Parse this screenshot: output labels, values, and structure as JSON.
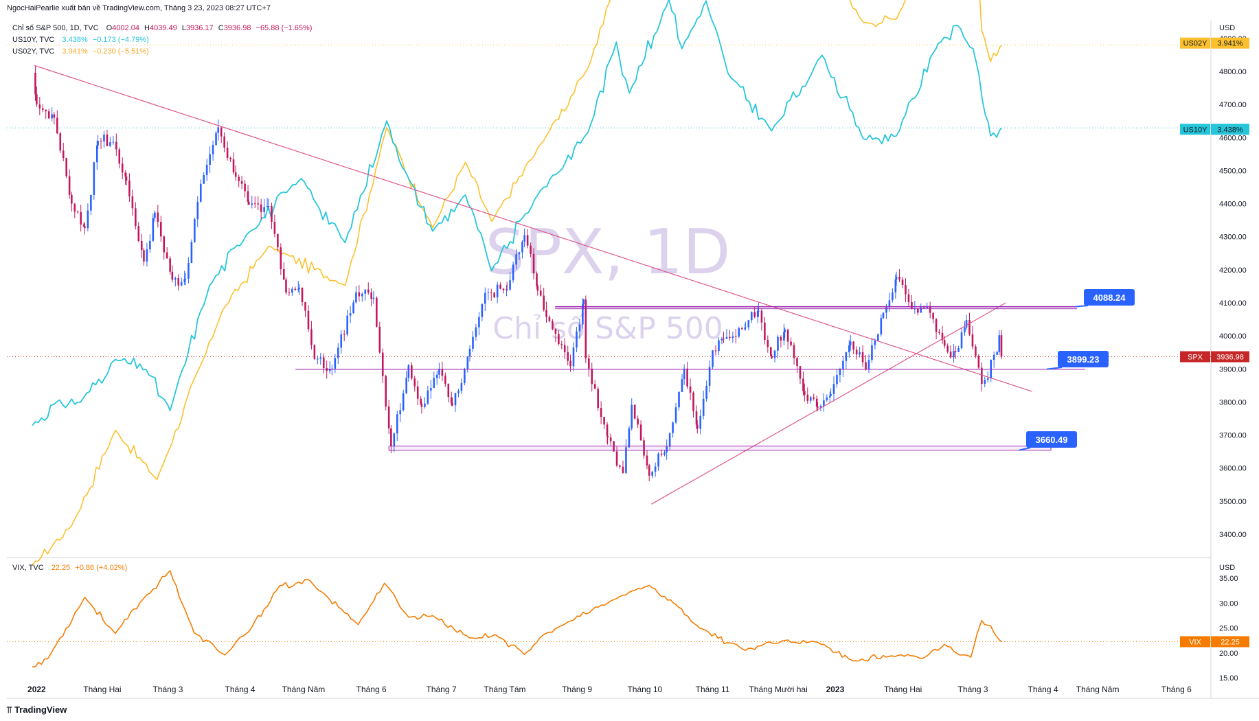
{
  "header": {
    "publisher": "NgocHaiPearlie xuất bản về TradingView.com, Tháng 3 23, 2023 08:27 UTC+7"
  },
  "legend": {
    "spx": {
      "symbol": "Chỉ số S&P 500, 1D, TVC",
      "o_label": "O",
      "o": "4002.04",
      "h_label": "H",
      "h": "4039.49",
      "l_label": "L",
      "l": "3936.17",
      "c_label": "C",
      "c": "3936.98",
      "chg": "−65.88 (−1.65%)"
    },
    "us10y": {
      "symbol": "US10Y, TVC",
      "value": "3.438%",
      "chg": "−0.173 (−4.79%)"
    },
    "us02y": {
      "symbol": "US02Y, TVC",
      "value": "3.941%",
      "chg": "−0.230 (−5.51%)"
    },
    "vix": {
      "symbol": "VIX, TVC",
      "value": "22.25",
      "chg": "+0.86 (+4.02%)"
    }
  },
  "watermark": {
    "ticker": "SPX, 1D",
    "name": "Chỉ số S&P 500"
  },
  "footer": {
    "logo": "TradingView"
  },
  "colors": {
    "bull": "#2962ff",
    "bear": "#c2185b",
    "us10y": "#26c6da",
    "us02y": "#fbc02d",
    "vix": "#f57c00",
    "trend": "#e0568a",
    "hline": "#9c27b0",
    "callout": "#2962ff",
    "spx_tag": "#c62828"
  },
  "chart_data": [
    {
      "type": "candlestick",
      "title": "Chỉ số S&P 500, 1D, TVC",
      "ylabel": "USD",
      "ylim": [
        3350,
        4950
      ],
      "y_ticks": [
        "3400.00",
        "3500.00",
        "3600.00",
        "3700.00",
        "3800.00",
        "3900.00",
        "4000.00",
        "4100.00",
        "4200.00",
        "4300.00",
        "4400.00",
        "4500.00",
        "4600.00",
        "4700.00",
        "4800.00",
        "4900.00"
      ],
      "x_ticks": [
        "2022",
        "Tháng Hai",
        "Tháng 3",
        "Tháng 4",
        "Tháng Năm",
        "Tháng 6",
        "Tháng 7",
        "Tháng Tám",
        "Tháng 9",
        "Tháng 10",
        "Tháng 11",
        "Tháng Mười hai",
        "2023",
        "Tháng Hai",
        "Tháng 3",
        "Tháng 4",
        "Tháng Năm",
        "Tháng 6"
      ],
      "spx_close_path": [
        [
          "2022-01-03",
          4796
        ],
        [
          "2022-01-05",
          4700
        ],
        [
          "2022-01-13",
          4660
        ],
        [
          "2022-01-21",
          4400
        ],
        [
          "2022-01-27",
          4326
        ],
        [
          "2022-02-02",
          4590
        ],
        [
          "2022-02-09",
          4587
        ],
        [
          "2022-02-15",
          4470
        ],
        [
          "2022-02-23",
          4225
        ],
        [
          "2022-02-28",
          4373
        ],
        [
          "2022-03-08",
          4170
        ],
        [
          "2022-03-14",
          4173
        ],
        [
          "2022-03-21",
          4460
        ],
        [
          "2022-03-29",
          4631
        ],
        [
          "2022-04-06",
          4481
        ],
        [
          "2022-04-12",
          4397
        ],
        [
          "2022-04-21",
          4393
        ],
        [
          "2022-04-29",
          4131
        ],
        [
          "2022-05-05",
          4146
        ],
        [
          "2022-05-12",
          3930
        ],
        [
          "2022-05-20",
          3901
        ],
        [
          "2022-05-31",
          4132
        ],
        [
          "2022-06-08",
          4115
        ],
        [
          "2022-06-16",
          3666
        ],
        [
          "2022-06-24",
          3911
        ],
        [
          "2022-06-30",
          3785
        ],
        [
          "2022-07-08",
          3899
        ],
        [
          "2022-07-14",
          3790
        ],
        [
          "2022-07-22",
          3961
        ],
        [
          "2022-07-29",
          4130
        ],
        [
          "2022-08-08",
          4140
        ],
        [
          "2022-08-16",
          4305
        ],
        [
          "2022-08-22",
          4137
        ],
        [
          "2022-08-26",
          4057
        ],
        [
          "2022-09-06",
          3908
        ],
        [
          "2022-09-12",
          4110
        ],
        [
          "2022-09-13",
          3932
        ],
        [
          "2022-09-23",
          3693
        ],
        [
          "2022-09-30",
          3585
        ],
        [
          "2022-10-04",
          3791
        ],
        [
          "2022-10-12",
          3577
        ],
        [
          "2022-10-20",
          3665
        ],
        [
          "2022-10-28",
          3901
        ],
        [
          "2022-11-03",
          3719
        ],
        [
          "2022-11-10",
          3956
        ],
        [
          "2022-11-15",
          3991
        ],
        [
          "2022-11-25",
          4026
        ],
        [
          "2022-12-01",
          4076
        ],
        [
          "2022-12-07",
          3933
        ],
        [
          "2022-12-13",
          4019
        ],
        [
          "2022-12-22",
          3822
        ],
        [
          "2022-12-28",
          3783
        ],
        [
          "2023-01-03",
          3824
        ],
        [
          "2023-01-12",
          3983
        ],
        [
          "2023-01-19",
          3898
        ],
        [
          "2023-01-27",
          4070
        ],
        [
          "2023-02-02",
          4179
        ],
        [
          "2023-02-09",
          4082
        ],
        [
          "2023-02-16",
          4090
        ],
        [
          "2023-02-24",
          3970
        ],
        [
          "2023-03-01",
          3951
        ],
        [
          "2023-03-06",
          4048
        ],
        [
          "2023-03-13",
          3855
        ],
        [
          "2023-03-20",
          3951
        ],
        [
          "2023-03-21",
          4002
        ],
        [
          "2023-03-22",
          3937
        ]
      ],
      "horizontal_levels": [
        {
          "label": "4088.24",
          "value": 4088.24
        },
        {
          "label": "3899.23",
          "value": 3899.23
        },
        {
          "label": "3660.49",
          "value": 3660.49
        }
      ],
      "trendlines": [
        {
          "from": [
            "2022-01-04",
            4818
          ],
          "to": [
            "2023-04-05",
            3832
          ]
        },
        {
          "from": [
            "2022-10-13",
            3491
          ],
          "to": [
            "2023-03-24",
            4100
          ]
        }
      ],
      "last_value": {
        "label": "SPX",
        "value": "3936.98"
      }
    },
    {
      "type": "line",
      "title": "US10Y, TVC / US02Y, TVC",
      "series": [
        {
          "name": "US10Y",
          "last": "3.438%",
          "points": [
            [
              "2022-01-03",
              1.63
            ],
            [
              "2022-01-14",
              1.77
            ],
            [
              "2022-01-25",
              1.77
            ],
            [
              "2022-02-10",
              2.03
            ],
            [
              "2022-02-24",
              1.97
            ],
            [
              "2022-03-07",
              1.72
            ],
            [
              "2022-03-25",
              2.48
            ],
            [
              "2022-04-11",
              2.79
            ],
            [
              "2022-05-06",
              3.13
            ],
            [
              "2022-05-26",
              2.74
            ],
            [
              "2022-06-14",
              3.48
            ],
            [
              "2022-06-24",
              3.13
            ],
            [
              "2022-07-05",
              2.81
            ],
            [
              "2022-07-20",
              3.03
            ],
            [
              "2022-08-01",
              2.57
            ],
            [
              "2022-08-22",
              3.03
            ],
            [
              "2022-09-14",
              3.41
            ],
            [
              "2022-09-27",
              3.96
            ],
            [
              "2022-10-03",
              3.65
            ],
            [
              "2022-10-21",
              4.22
            ],
            [
              "2022-10-27",
              3.92
            ],
            [
              "2022-11-07",
              4.21
            ],
            [
              "2022-11-17",
              3.77
            ],
            [
              "2022-12-07",
              3.42
            ],
            [
              "2022-12-30",
              3.88
            ],
            [
              "2023-01-18",
              3.37
            ],
            [
              "2023-02-02",
              3.39
            ],
            [
              "2023-02-21",
              3.95
            ],
            [
              "2023-03-02",
              4.06
            ],
            [
              "2023-03-09",
              3.92
            ],
            [
              "2023-03-17",
              3.39
            ],
            [
              "2023-03-22",
              3.438
            ]
          ]
        },
        {
          "name": "US02Y",
          "last": "3.941%",
          "points": [
            [
              "2022-01-03",
              0.78
            ],
            [
              "2022-01-21",
              1.02
            ],
            [
              "2022-02-10",
              1.6
            ],
            [
              "2022-03-01",
              1.3
            ],
            [
              "2022-03-31",
              2.33
            ],
            [
              "2022-04-21",
              2.72
            ],
            [
              "2022-05-26",
              2.48
            ],
            [
              "2022-06-14",
              3.44
            ],
            [
              "2022-07-05",
              2.83
            ],
            [
              "2022-07-20",
              3.23
            ],
            [
              "2022-08-01",
              2.87
            ],
            [
              "2022-08-26",
              3.39
            ],
            [
              "2022-09-14",
              3.8
            ],
            [
              "2022-09-26",
              4.29
            ],
            [
              "2022-10-21",
              4.48
            ],
            [
              "2022-11-04",
              4.66
            ],
            [
              "2022-11-17",
              4.45
            ],
            [
              "2022-12-07",
              4.27
            ],
            [
              "2022-12-30",
              4.43
            ],
            [
              "2023-01-18",
              4.08
            ],
            [
              "2023-02-02",
              4.1
            ],
            [
              "2023-02-21",
              4.66
            ],
            [
              "2023-03-08",
              5.07
            ],
            [
              "2023-03-13",
              4.03
            ],
            [
              "2023-03-17",
              3.84
            ],
            [
              "2023-03-22",
              3.941
            ]
          ]
        }
      ]
    },
    {
      "type": "line",
      "title": "VIX, TVC",
      "ylim": [
        15,
        37
      ],
      "y_ticks": [
        "15.00",
        "20.00",
        "25.00",
        "30.00",
        "35.00"
      ],
      "series": [
        {
          "name": "VIX",
          "last": "22.25",
          "points": [
            [
              "2022-01-03",
              17.2
            ],
            [
              "2022-01-10",
              18.8
            ],
            [
              "2022-01-27",
              31.2
            ],
            [
              "2022-02-10",
              23.9
            ],
            [
              "2022-02-23",
              31.0
            ],
            [
              "2022-03-07",
              36.5
            ],
            [
              "2022-03-18",
              24.0
            ],
            [
              "2022-04-01",
              19.6
            ],
            [
              "2022-04-12",
              24.3
            ],
            [
              "2022-04-26",
              33.5
            ],
            [
              "2022-05-02",
              33.4
            ],
            [
              "2022-05-09",
              34.8
            ],
            [
              "2022-06-01",
              25.7
            ],
            [
              "2022-06-13",
              34.0
            ],
            [
              "2022-06-24",
              27.2
            ],
            [
              "2022-07-05",
              27.5
            ],
            [
              "2022-07-22",
              23.0
            ],
            [
              "2022-08-03",
              23.6
            ],
            [
              "2022-08-16",
              19.7
            ],
            [
              "2022-08-23",
              23.0
            ],
            [
              "2022-09-02",
              25.5
            ],
            [
              "2022-09-30",
              31.6
            ],
            [
              "2022-10-12",
              33.6
            ],
            [
              "2022-10-24",
              29.8
            ],
            [
              "2022-11-04",
              25.0
            ],
            [
              "2022-11-25",
              20.5
            ],
            [
              "2022-12-06",
              22.2
            ],
            [
              "2022-12-13",
              22.5
            ],
            [
              "2022-12-28",
              22.1
            ],
            [
              "2023-01-13",
              18.4
            ],
            [
              "2023-01-31",
              19.4
            ],
            [
              "2023-02-14",
              18.9
            ],
            [
              "2023-02-24",
              21.7
            ],
            [
              "2023-03-08",
              19.1
            ],
            [
              "2023-03-13",
              26.5
            ],
            [
              "2023-03-17",
              25.5
            ],
            [
              "2023-03-22",
              22.25
            ]
          ]
        }
      ]
    }
  ]
}
